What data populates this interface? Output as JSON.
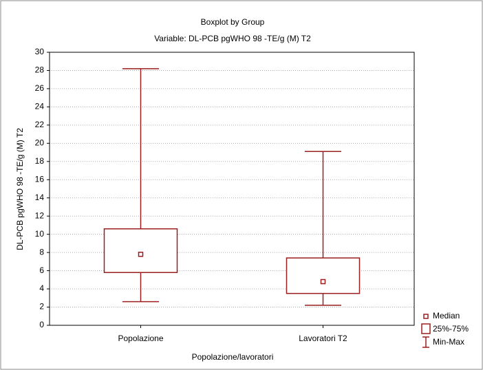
{
  "chart_data": {
    "type": "box",
    "title": "Boxplot by Group",
    "subtitle": "Variable: DL-PCB pgWHO 98 -TE/g (M) T2",
    "y_label": "DL-PCB pgWHO 98 -TE/g (M) T2",
    "x_label": "Popolazione/lavoratori",
    "categories": [
      "Popolazione",
      "Lavoratori T2"
    ],
    "min": [
      2.6,
      2.2
    ],
    "q1": [
      5.8,
      3.5
    ],
    "median": [
      7.8,
      4.8
    ],
    "q3": [
      10.6,
      7.4
    ],
    "max": [
      28.2,
      19.1
    ],
    "color": "#9b1c1c",
    "legend": [
      "Median",
      "25%-75%",
      "Min-Max"
    ],
    "ylim": [
      0,
      30
    ],
    "yticks": [
      0,
      2,
      4,
      6,
      8,
      10,
      12,
      14,
      16,
      18,
      20,
      22,
      24,
      26,
      28,
      30
    ],
    "grid": true
  }
}
